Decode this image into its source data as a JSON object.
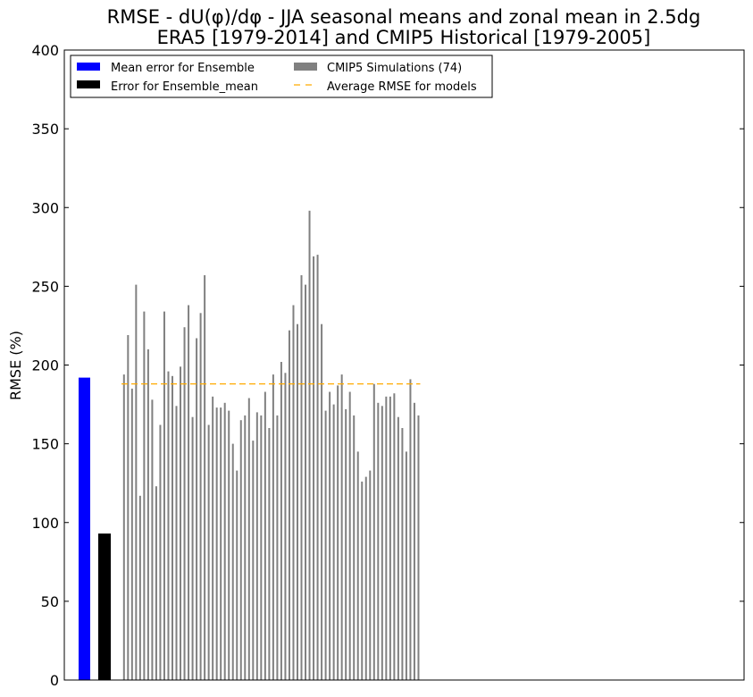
{
  "chart_data": {
    "type": "bar",
    "title_line1": "RMSE - dU(φ)/dφ - JJA seasonal means and zonal mean in 2.5dg",
    "title_line2": "ERA5 [1979-2014] and CMIP5 Historical [1979-2005]",
    "ylabel": "RMSE (%)",
    "ylim": [
      0,
      400
    ],
    "yticks": [
      0,
      50,
      100,
      150,
      200,
      250,
      300,
      350,
      400
    ],
    "grid": false,
    "legend_position": "top-left",
    "legend": {
      "ensemble_mean_error": "Mean error for Ensemble",
      "ensemble_mean_model": "Error for Ensemble_mean",
      "simulations": "CMIP5 Simulations (74)",
      "average": "Average RMSE for models"
    },
    "colors": {
      "ensemble_mean_error": "#0000ff",
      "ensemble_mean_model": "#000000",
      "simulations": "#808080",
      "average": "#ffaa00"
    },
    "ensemble_mean_error_value": 192,
    "ensemble_mean_model_value": 93,
    "average_rmse": 188,
    "simulation_values": [
      194,
      219,
      185,
      251,
      117,
      234,
      210,
      178,
      123,
      162,
      234,
      196,
      193,
      174,
      199,
      224,
      238,
      167,
      217,
      233,
      257,
      162,
      180,
      173,
      173,
      176,
      171,
      150,
      133,
      165,
      168,
      179,
      152,
      170,
      168,
      183,
      160,
      194,
      168,
      202,
      195,
      222,
      238,
      226,
      257,
      251,
      298,
      269,
      270,
      226,
      171,
      183,
      175,
      187,
      194,
      172,
      183,
      168,
      145,
      126,
      129,
      133,
      188,
      176,
      174,
      180,
      180,
      182,
      167,
      160,
      145,
      191,
      176,
      168
    ]
  }
}
